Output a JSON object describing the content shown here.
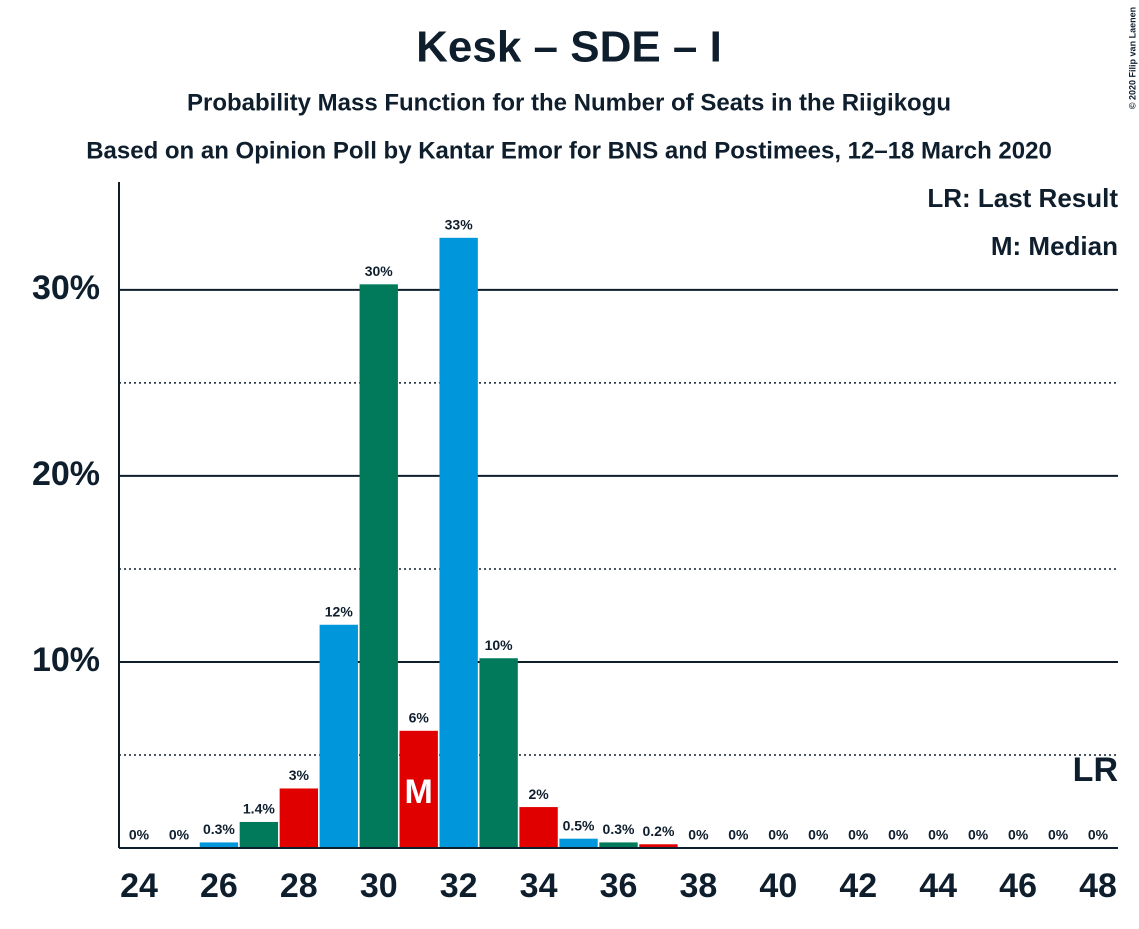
{
  "chart_data": {
    "type": "bar",
    "title": "Kesk – SDE – I",
    "subtitle": "Probability Mass Function for the Number of Seats in the Riigikogu",
    "subtitle2": "Based on an Opinion Poll by Kantar Emor for BNS and Postimees, 12–18 March 2020",
    "copyright": "© 2020 Filip van Laenen",
    "legend": [
      "LR: Last Result",
      "M: Median"
    ],
    "x": [
      24,
      25,
      26,
      27,
      28,
      29,
      30,
      31,
      32,
      33,
      34,
      35,
      36,
      37,
      38,
      39,
      40,
      41,
      42,
      43,
      44,
      45,
      46,
      47,
      48
    ],
    "values": [
      0,
      0,
      0.3,
      1.4,
      3.2,
      12,
      30.3,
      6.3,
      32.8,
      10.2,
      2.2,
      0.5,
      0.3,
      0.2,
      0,
      0,
      0,
      0,
      0,
      0,
      0,
      0,
      0,
      0,
      0
    ],
    "value_labels": [
      "0%",
      "0%",
      "0.3%",
      "1.4%",
      "3%",
      "12%",
      "30%",
      "6%",
      "33%",
      "10%",
      "2%",
      "0.5%",
      "0.3%",
      "0.2%",
      "0%",
      "0%",
      "0%",
      "0%",
      "0%",
      "0%",
      "0%",
      "0%",
      "0%",
      "0%",
      "0%"
    ],
    "colors": [
      "#007a5a",
      "#e00000",
      "#0096dc",
      "#007a5a",
      "#e00000",
      "#0096dc",
      "#007a5a",
      "#e00000",
      "#0096dc",
      "#007a5a",
      "#e00000",
      "#0096dc",
      "#007a5a",
      "#e00000",
      "#0096dc",
      "#007a5a",
      "#e00000",
      "#0096dc",
      "#007a5a",
      "#e00000",
      "#0096dc",
      "#007a5a",
      "#e00000",
      "#0096dc",
      "#007a5a"
    ],
    "xlim": [
      23.5,
      48.5
    ],
    "xticks": [
      24,
      26,
      28,
      30,
      32,
      34,
      36,
      38,
      40,
      42,
      44,
      46,
      48
    ],
    "ylim": [
      0,
      35.8
    ],
    "yticks": [
      {
        "value": 10,
        "label": "10%"
      },
      {
        "value": 20,
        "label": "20%"
      },
      {
        "value": 30,
        "label": "30%"
      }
    ],
    "minor_yticks": [
      5,
      15,
      25
    ],
    "grid": true,
    "median": {
      "x": 31,
      "label": "M"
    },
    "last_result": {
      "label": "LR"
    }
  }
}
